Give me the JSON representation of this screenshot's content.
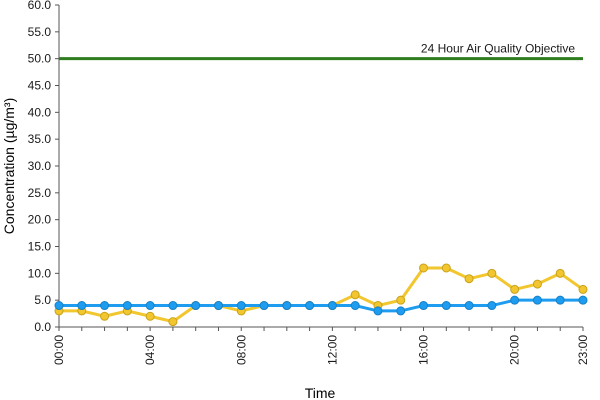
{
  "chart_data": {
    "type": "line",
    "xlabel": "Time",
    "ylabel": "Concentration (µg/m³)",
    "ylim": [
      0,
      60
    ],
    "yticks": [
      "0.0",
      "5.0",
      "10.0",
      "15.0",
      "20.0",
      "25.0",
      "30.0",
      "35.0",
      "40.0",
      "45.0",
      "50.0",
      "55.0",
      "60.0"
    ],
    "ytick_values": [
      0,
      5,
      10,
      15,
      20,
      25,
      30,
      35,
      40,
      45,
      50,
      55,
      60
    ],
    "x": [
      0,
      1,
      2,
      3,
      4,
      5,
      6,
      7,
      8,
      9,
      10,
      11,
      12,
      13,
      14,
      15,
      16,
      17,
      18,
      19,
      20,
      21,
      22,
      23
    ],
    "xticks": [
      "00:00",
      "04:00",
      "08:00",
      "12:00",
      "16:00",
      "20:00",
      "23:00"
    ],
    "xtick_values": [
      0,
      4,
      8,
      12,
      16,
      20,
      23
    ],
    "grid": false,
    "series": [
      {
        "color": "#F2C62E",
        "values": [
          3,
          3,
          2,
          3,
          2,
          1,
          4,
          4,
          3,
          4,
          4,
          4,
          4,
          6,
          4,
          5,
          11,
          11,
          9,
          10,
          7,
          8,
          10,
          7
        ]
      },
      {
        "color": "#1E9CF0",
        "values": [
          4,
          4,
          4,
          4,
          4,
          4,
          4,
          4,
          4,
          4,
          4,
          4,
          4,
          4,
          3,
          3,
          4,
          4,
          4,
          4,
          5,
          5,
          5,
          5
        ]
      }
    ],
    "reference_line": {
      "label": "24 Hour Air Quality Objective",
      "value": 50,
      "color": "#2E7D1E"
    }
  }
}
